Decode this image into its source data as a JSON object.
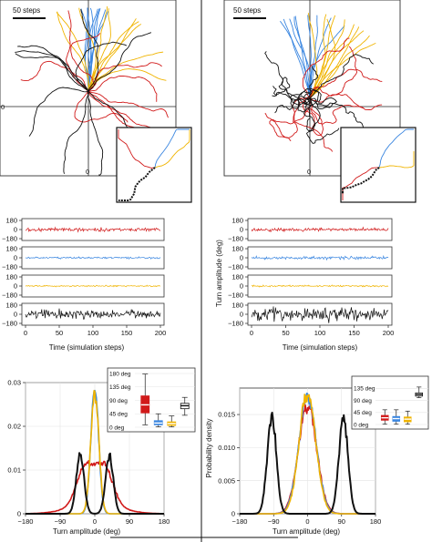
{
  "colors": {
    "red": "#d11a1a",
    "blue": "#3a86e0",
    "yellow": "#f0b400",
    "black": "#111111"
  },
  "chart_data": [
    {
      "type": "line",
      "panel": "left-trajectories",
      "scale_bar_label": "50 steps",
      "x_tick_label": "0",
      "y_tick_label": "0",
      "series": [
        {
          "color": "blue"
        },
        {
          "color": "yellow"
        },
        {
          "color": "red"
        },
        {
          "color": "black"
        }
      ]
    },
    {
      "type": "line",
      "panel": "right-trajectories",
      "scale_bar_label": "50 steps",
      "x_tick_label": "0",
      "series": [
        {
          "color": "blue"
        },
        {
          "color": "yellow"
        },
        {
          "color": "red"
        },
        {
          "color": "black"
        }
      ]
    },
    {
      "type": "line",
      "panel": "left-time-series",
      "xlabel": "Time (simulation steps)",
      "ylabel": "",
      "xlim": [
        0,
        200
      ],
      "x_ticks": [
        "0",
        "50",
        "100",
        "150",
        "200"
      ],
      "y_ticks": [
        "180",
        "0",
        "−180"
      ],
      "rows": [
        {
          "color": "red",
          "amplitude": 25
        },
        {
          "color": "blue",
          "amplitude": 12
        },
        {
          "color": "yellow",
          "amplitude": 9
        },
        {
          "color": "black",
          "amplitude": 60
        }
      ]
    },
    {
      "type": "line",
      "panel": "right-time-series",
      "xlabel": "Time (simulation steps)",
      "ylabel": "Turn amplitude (deg)",
      "xlim": [
        0,
        200
      ],
      "x_ticks": [
        "0",
        "50",
        "100",
        "150",
        "200"
      ],
      "y_ticks": [
        "180",
        "0",
        "−180"
      ],
      "rows": [
        {
          "color": "red",
          "amplitude": 22
        },
        {
          "color": "blue",
          "amplitude": 22
        },
        {
          "color": "yellow",
          "amplitude": 12
        },
        {
          "color": "black",
          "amplitude": 95
        }
      ]
    },
    {
      "type": "line",
      "panel": "left-distribution",
      "xlabel": "Turn amplitude (deg)",
      "ylabel": "",
      "xlim": [
        -180,
        180
      ],
      "ylim": [
        0,
        0.03
      ],
      "x_ticks": [
        "−180",
        "−90",
        "0",
        "90",
        "180"
      ],
      "y_ticks": [
        "0.03",
        "0.02",
        "0.01",
        "0"
      ],
      "series": [
        {
          "color": "red",
          "shape": "double",
          "components": [
            {
              "mu": -25,
              "sigma": 22,
              "amp": 0.0085
            },
            {
              "mu": 25,
              "sigma": 22,
              "amp": 0.0085
            },
            {
              "mu": 0,
              "sigma": 60,
              "amp": 0.0025
            }
          ]
        },
        {
          "color": "blue",
          "shape": "single",
          "components": [
            {
              "mu": 0,
              "sigma": 10,
              "amp": 0.029
            }
          ]
        },
        {
          "color": "yellow",
          "shape": "single",
          "components": [
            {
              "mu": 0,
              "sigma": 10.5,
              "amp": 0.0275
            }
          ]
        },
        {
          "color": "black",
          "shape": "double",
          "components": [
            {
              "mu": -38,
              "sigma": 10,
              "amp": 0.0135
            },
            {
              "mu": 38,
              "sigma": 10,
              "amp": 0.0135
            }
          ]
        }
      ],
      "inset": {
        "type": "box",
        "y_ticks": [
          "180 deg",
          "135 deg",
          "90 deg",
          "45 deg",
          "0 deg"
        ],
        "ylim": [
          0,
          180
        ],
        "boxes": [
          {
            "color": "red",
            "whisker_low": 8,
            "q1": 48,
            "median": 75,
            "q3": 105,
            "whisker_high": 178
          },
          {
            "color": "blue",
            "whisker_low": 1,
            "q1": 8,
            "median": 14,
            "q3": 22,
            "whisker_high": 45
          },
          {
            "color": "yellow",
            "whisker_low": 1,
            "q1": 6,
            "median": 12,
            "q3": 18,
            "whisker_high": 38
          },
          {
            "color": "black",
            "whisker_low": 40,
            "q1": 62,
            "median": 72,
            "q3": 80,
            "whisker_high": 100
          }
        ]
      }
    },
    {
      "type": "line",
      "panel": "right-distribution",
      "xlabel": "Turn amplitude (deg)",
      "ylabel": "Probability density",
      "xlim": [
        -180,
        180
      ],
      "ylim": [
        0,
        0.019
      ],
      "x_ticks": [
        "−180",
        "−90",
        "0",
        "90",
        "180"
      ],
      "y_ticks": [
        "0.015",
        "0.010",
        "0.005",
        "0"
      ],
      "series": [
        {
          "color": "red",
          "shape": "single",
          "components": [
            {
              "mu": 0,
              "sigma": 24,
              "amp": 0.0165
            }
          ]
        },
        {
          "color": "blue",
          "shape": "single",
          "components": [
            {
              "mu": 0,
              "sigma": 23,
              "amp": 0.0178
            }
          ]
        },
        {
          "color": "yellow",
          "shape": "single",
          "components": [
            {
              "mu": 0,
              "sigma": 22,
              "amp": 0.0182
            }
          ]
        },
        {
          "color": "black",
          "shape": "double",
          "components": [
            {
              "mu": -95,
              "sigma": 12,
              "amp": 0.0148
            },
            {
              "mu": 95,
              "sigma": 12,
              "amp": 0.0148
            }
          ]
        }
      ],
      "inset": {
        "type": "box",
        "y_ticks": [
          "135 deg",
          "90 deg",
          "45 deg",
          "0 deg"
        ],
        "ylim": [
          0,
          160
        ],
        "boxes": [
          {
            "color": "red",
            "whisker_low": 1,
            "q1": 16,
            "median": 25,
            "q3": 34,
            "whisker_high": 55
          },
          {
            "color": "blue",
            "whisker_low": 1,
            "q1": 12,
            "median": 22,
            "q3": 30,
            "whisker_high": 55
          },
          {
            "color": "yellow",
            "whisker_low": 1,
            "q1": 10,
            "median": 20,
            "q3": 28,
            "whisker_high": 50
          },
          {
            "color": "black",
            "whisker_low": 100,
            "q1": 106,
            "median": 112,
            "q3": 118,
            "whisker_high": 140
          }
        ]
      }
    }
  ]
}
